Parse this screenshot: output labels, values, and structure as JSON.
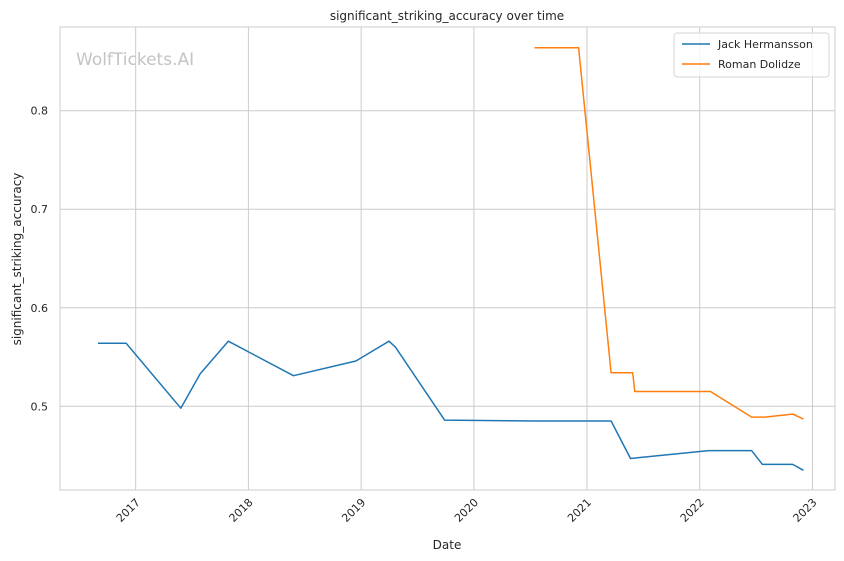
{
  "chart_data": {
    "type": "line",
    "title": "significant_striking_accuracy over time",
    "xlabel": "Date",
    "ylabel": "significant_striking_accuracy",
    "watermark": "WolfTickets.AI",
    "x_range": [
      "2016-05-01",
      "2023-03-15"
    ],
    "ylim": [
      0.415,
      0.885
    ],
    "x_ticks": [
      "2017-01-01",
      "2018-01-01",
      "2019-01-01",
      "2020-01-01",
      "2021-01-01",
      "2022-01-01",
      "2023-01-01"
    ],
    "x_tick_labels": [
      "2017",
      "2018",
      "2019",
      "2020",
      "2021",
      "2022",
      "2023"
    ],
    "y_ticks": [
      0.5,
      0.6,
      0.7,
      0.8
    ],
    "y_tick_labels": [
      "0.5",
      "0.6",
      "0.7",
      "0.8"
    ],
    "grid": true,
    "legend_position": "top-right",
    "series": [
      {
        "name": "Jack Hermansson",
        "color": "#1f77b4",
        "points": [
          [
            "2016-09-01",
            0.564
          ],
          [
            "2016-12-01",
            0.564
          ],
          [
            "2017-05-27",
            0.498
          ],
          [
            "2017-07-29",
            0.533
          ],
          [
            "2017-10-28",
            0.566
          ],
          [
            "2018-05-27",
            0.531
          ],
          [
            "2018-12-15",
            0.546
          ],
          [
            "2019-04-01",
            0.566
          ],
          [
            "2019-04-22",
            0.56
          ],
          [
            "2019-09-28",
            0.486
          ],
          [
            "2020-07-18",
            0.485
          ],
          [
            "2021-03-20",
            0.485
          ],
          [
            "2021-05-22",
            0.447
          ],
          [
            "2022-01-30",
            0.455
          ],
          [
            "2022-06-18",
            0.455
          ],
          [
            "2022-07-23",
            0.441
          ],
          [
            "2022-10-29",
            0.441
          ],
          [
            "2022-12-03",
            0.435
          ]
        ]
      },
      {
        "name": "Roman Dolidze",
        "color": "#ff7f0e",
        "points": [
          [
            "2020-07-15",
            0.864
          ],
          [
            "2020-12-05",
            0.864
          ],
          [
            "2021-03-20",
            0.534
          ],
          [
            "2021-05-29",
            0.534
          ],
          [
            "2021-06-05",
            0.515
          ],
          [
            "2022-02-05",
            0.515
          ],
          [
            "2022-06-18",
            0.489
          ],
          [
            "2022-07-30",
            0.489
          ],
          [
            "2022-10-29",
            0.492
          ],
          [
            "2022-12-03",
            0.487
          ]
        ]
      }
    ]
  }
}
